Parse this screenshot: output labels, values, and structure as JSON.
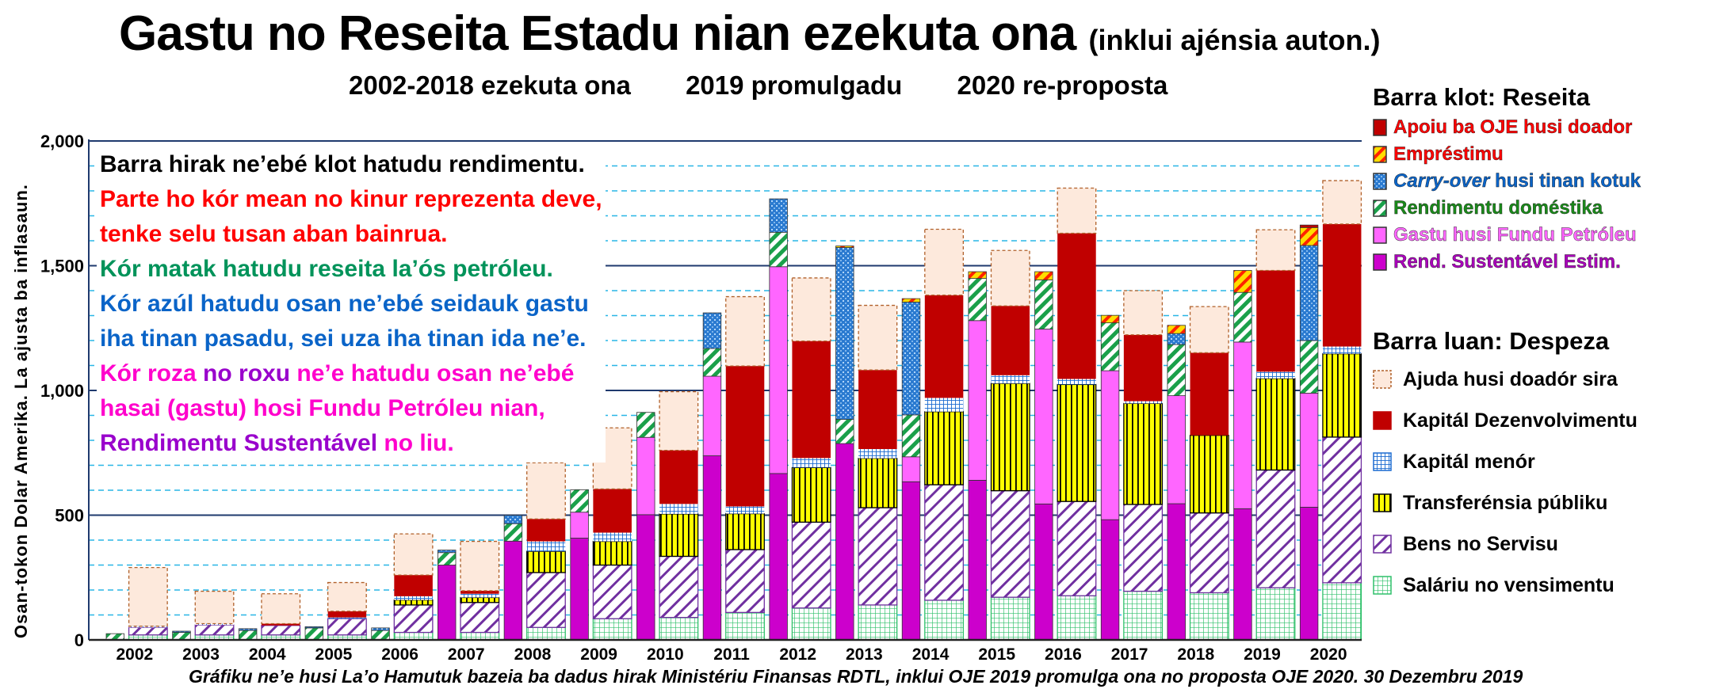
{
  "header": {
    "title": "Gastu no Reseita Estadu nian ezekuta ona",
    "title_suffix": "(inklui ajénsia auton.)",
    "subtitle_parts": [
      "2002-2018 ezekuta ona",
      "2019 promulgadu",
      "2020 re-proposta"
    ]
  },
  "y_axis_label": "Osan-tokon Dolar Amerika.   La ajusta ba inflasaun.",
  "notes": [
    {
      "text": "Barra hirak ne’ebé klot hatudu rendimentu.",
      "color": "#000000"
    },
    {
      "text": "Parte ho kór mean no kinur reprezenta deve,",
      "color": "#ff0000"
    },
    {
      "text": "tenke selu tusan aban bainrua.",
      "color": "#ff0000"
    },
    {
      "text": "Kór matak hatudu reseita la’ós petróleu.",
      "color": "#00935a"
    },
    {
      "text": "Kór azúl hatudu osan ne’ebé seidauk gastu",
      "color": "#0a64c8"
    },
    {
      "text": "iha tinan pasadu, sei uza iha tinan ida ne’e.",
      "color": "#0a64c8"
    }
  ],
  "note_mixed": [
    [
      {
        "text": "Kór roza ",
        "color": "#ff00cc"
      },
      {
        "text": "no roxu ",
        "color": "#9900cc"
      },
      {
        "text": "ne’e hatudu osan ne’ebé",
        "color": "#ff00cc"
      }
    ],
    [
      {
        "text": "hasai (gastu) hosi Fundu Petróleu nian,",
        "color": "#ff00cc"
      }
    ],
    [
      {
        "text": "Rendimentu Sustentável ",
        "color": "#9900cc"
      },
      {
        "text": "no liu.",
        "color": "#ff00cc"
      }
    ]
  ],
  "legend_revenue": {
    "title": "Barra klot: Reseita",
    "items": [
      {
        "label": "Apoiu ba OJE husi doador",
        "color": "#ff0000"
      },
      {
        "label": "Empréstimu",
        "color": "#ff0000"
      },
      {
        "label_italic": "Carry-over",
        "label": " husi tinan kotuk",
        "color": "#0a64c8"
      },
      {
        "label": "Rendimentu doméstika",
        "color": "#1a8a1a"
      },
      {
        "label": "Gastu husi Fundu Petróleu",
        "color": "#ff66ff"
      },
      {
        "label": "Rend. Sustentável Estim.",
        "color": "#aa00bb"
      }
    ]
  },
  "legend_spending": {
    "title": "Barra luan: Despeza",
    "items": [
      {
        "label": "Ajuda husi doadór sira"
      },
      {
        "label": "Kapitál Dezenvolvimentu"
      },
      {
        "label": "Kapitál menór"
      },
      {
        "label": "Transferénsia públiku"
      },
      {
        "label": "Bens no Servisu"
      },
      {
        "label": "Saláriu no vensimentu"
      }
    ]
  },
  "footer": "Gráfiku ne’e husi La’o Hamutuk bazeia ba dadus hirak Ministériu Finansas RDTL, inklui OJE 2019 promulga ona no proposta OJE 2020.  30 Dezembru 2019",
  "chart_data": {
    "type": "bar",
    "stacked": true,
    "title": "Gastu no Reseita Estadu nian ezekuta ona",
    "xlabel": "",
    "ylabel": "Osan-tokon Dolar Amerika. La ajusta ba inflasaun.",
    "ylim": [
      0,
      2000
    ],
    "yticks": [
      0,
      500,
      1000,
      1500,
      2000
    ],
    "ytick_labels": [
      "0",
      "500",
      "1,000",
      "1,500",
      "2,000"
    ],
    "grid": true,
    "categories": [
      "2002",
      "2003",
      "2004",
      "2005",
      "2006",
      "2007",
      "2008",
      "2009",
      "2010",
      "2011",
      "2012",
      "2013",
      "2014",
      "2015",
      "2016",
      "2017",
      "2018",
      "2019",
      "2020"
    ],
    "revenue_series": [
      {
        "name": "Rend. Sustentável Estim.",
        "key": "esi",
        "color": "#cc00cc",
        "values": [
          0,
          0,
          0,
          0,
          0,
          300,
          396,
          408,
          502,
          738,
          667,
          787,
          634,
          640,
          545,
          482,
          546,
          526,
          532
        ]
      },
      {
        "name": "Gastu husi Fundu Petróleu",
        "key": "fp",
        "color": "#ff66ff",
        "values": [
          0,
          0,
          0,
          0,
          0,
          0,
          0,
          104,
          310,
          319,
          829,
          0,
          100,
          640,
          701,
          597,
          433,
          668,
          457
        ]
      },
      {
        "name": "Rendimentu doméstika",
        "key": "dom",
        "color": "#1aa04a",
        "values": [
          25,
          30,
          38,
          48,
          38,
          50,
          70,
          90,
          100,
          111,
          138,
          97,
          168,
          169,
          197,
          192,
          205,
          199,
          211
        ]
      },
      {
        "name": "Carry-over husi tinan kotuk",
        "key": "carry",
        "color": "#2a7ad0",
        "values": [
          0,
          5,
          7,
          5,
          10,
          10,
          34,
          0,
          0,
          143,
          134,
          689,
          452,
          0,
          0,
          0,
          44,
          0,
          381
        ]
      },
      {
        "name": "Empréstimu",
        "key": "loan",
        "color": "#ffcc00",
        "values": [
          0,
          0,
          0,
          0,
          0,
          0,
          0,
          0,
          0,
          0,
          0,
          6,
          14,
          27,
          33,
          30,
          33,
          88,
          72
        ]
      },
      {
        "name": "Apoiu ba OJE husi doador",
        "key": "donor",
        "color": "#c00000",
        "values": [
          0,
          0,
          0,
          0,
          0,
          0,
          0,
          0,
          0,
          0,
          0,
          0,
          0,
          0,
          0,
          0,
          0,
          0,
          10
        ]
      }
    ],
    "spending_series": [
      {
        "name": "Saláriu no vensimentu",
        "key": "sal",
        "color": "#2fc06a",
        "values": [
          20,
          20,
          20,
          20,
          30,
          30,
          50,
          85,
          90,
          110,
          128,
          140,
          159,
          171,
          177,
          195,
          189,
          209,
          229
        ]
      },
      {
        "name": "Bens no Servisu",
        "key": "bens",
        "color": "#7030a0",
        "values": [
          30,
          40,
          38,
          65,
          110,
          120,
          220,
          215,
          245,
          252,
          344,
          390,
          463,
          427,
          378,
          348,
          320,
          472,
          584
        ]
      },
      {
        "name": "Transferénsia públiku",
        "key": "transf",
        "color": "#ffff00",
        "values": [
          0,
          0,
          0,
          0,
          20,
          20,
          85,
          95,
          170,
          144,
          219,
          198,
          293,
          430,
          469,
          405,
          311,
          367,
          334
        ]
      },
      {
        "name": "Kapitál menór",
        "key": "kmenor",
        "color": "#1a6ad0",
        "values": [
          5,
          5,
          0,
          5,
          15,
          15,
          40,
          35,
          40,
          29,
          38,
          37,
          55,
          33,
          22,
          9,
          0,
          27,
          29
        ]
      },
      {
        "name": "Kapitál Dezenvolvimentu",
        "key": "kdev",
        "color": "#c00000",
        "values": [
          0,
          0,
          7,
          25,
          85,
          12,
          90,
          175,
          215,
          563,
          469,
          317,
          412,
          278,
          584,
          266,
          331,
          406,
          491
        ]
      },
      {
        "name": "Ajuda husi doadór sira",
        "key": "aid",
        "color": "#fde9dc",
        "values": [
          235,
          130,
          120,
          115,
          165,
          198,
          225,
          245,
          235,
          278,
          253,
          259,
          264,
          222,
          181,
          177,
          185,
          163,
          174
        ]
      }
    ]
  }
}
